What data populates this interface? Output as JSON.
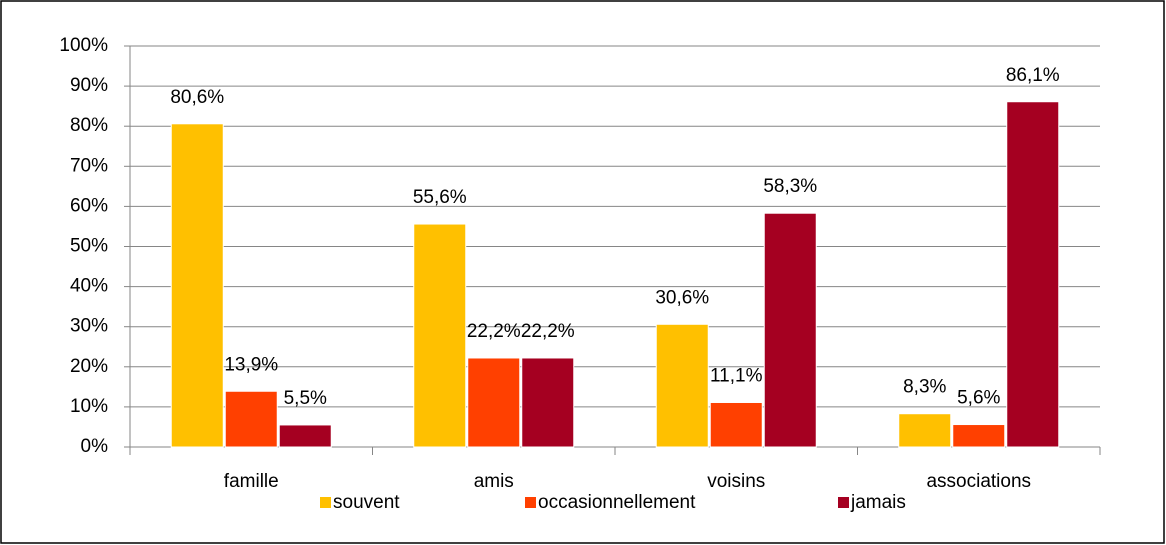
{
  "chart_data": {
    "type": "bar",
    "categories": [
      "famille",
      "amis",
      "voisins",
      "associations"
    ],
    "series": [
      {
        "name": "souvent",
        "color": "#ffc000",
        "values": [
          80.6,
          55.6,
          30.6,
          8.3
        ],
        "value_labels": [
          "80,6%",
          "55,6%",
          "30,6%",
          "8,3%"
        ]
      },
      {
        "name": "occasionnellement",
        "color": "#ff4000",
        "values": [
          13.9,
          22.2,
          11.1,
          5.6
        ],
        "value_labels": [
          "13,9%",
          "22,2%",
          "11,1%",
          "5,6%"
        ]
      },
      {
        "name": "jamais",
        "color": "#a50021",
        "values": [
          5.5,
          22.2,
          58.3,
          86.1
        ],
        "value_labels": [
          "5,5%",
          "22,2%",
          "58,3%",
          "86,1%"
        ]
      }
    ],
    "ylim": [
      0,
      100
    ],
    "yticks": [
      {
        "value": 0,
        "label": "0%"
      },
      {
        "value": 10,
        "label": "10%"
      },
      {
        "value": 20,
        "label": "20%"
      },
      {
        "value": 30,
        "label": "30%"
      },
      {
        "value": 40,
        "label": "40%"
      },
      {
        "value": 50,
        "label": "50%"
      },
      {
        "value": 60,
        "label": "60%"
      },
      {
        "value": 70,
        "label": "70%"
      },
      {
        "value": 80,
        "label": "80%"
      },
      {
        "value": 90,
        "label": "90%"
      },
      {
        "value": 100,
        "label": "100%"
      }
    ],
    "grid": true,
    "legend": "bottom"
  }
}
